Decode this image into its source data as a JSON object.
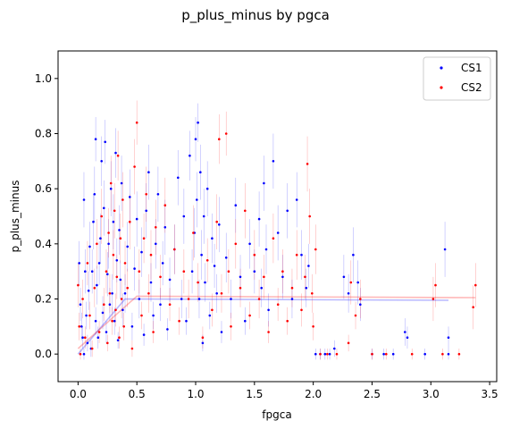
{
  "chart_data": {
    "type": "scatter",
    "title": "p_plus_minus by pgca",
    "xlabel": "fpgca",
    "ylabel": "p_plus_minus",
    "xlim": [
      -0.17,
      3.56
    ],
    "ylim": [
      -0.1,
      1.1
    ],
    "xticks": [
      {
        "value": 0.0,
        "label": "0.0"
      },
      {
        "value": 0.5,
        "label": "0.5"
      },
      {
        "value": 1.0,
        "label": "1.0"
      },
      {
        "value": 1.5,
        "label": "1.5"
      },
      {
        "value": 2.0,
        "label": "2.0"
      },
      {
        "value": 2.5,
        "label": "2.5"
      },
      {
        "value": 3.0,
        "label": "3.0"
      },
      {
        "value": 3.5,
        "label": "3.5"
      }
    ],
    "yticks": [
      {
        "value": 0.0,
        "label": "0.0"
      },
      {
        "value": 0.2,
        "label": "0.2"
      },
      {
        "value": 0.4,
        "label": "0.4"
      },
      {
        "value": 0.6,
        "label": "0.6"
      },
      {
        "value": 0.8,
        "label": "0.8"
      },
      {
        "value": 1.0,
        "label": "1.0"
      }
    ],
    "grid": false,
    "legend_position": "top-right",
    "series": [
      {
        "name": "CS1",
        "color": "#0000ff",
        "fit_line": [
          [
            0.0,
            0.0
          ],
          [
            0.4,
            0.2
          ],
          [
            3.15,
            0.195
          ]
        ],
        "points": [
          [
            0.01,
            0.33,
            0.08
          ],
          [
            0.02,
            0.18,
            0.06
          ],
          [
            0.03,
            0.1,
            0.05
          ],
          [
            0.04,
            0.06,
            0.04
          ],
          [
            0.05,
            0.56,
            0.1
          ],
          [
            0.05,
            0.0,
            0.02
          ],
          [
            0.06,
            0.3,
            0.08
          ],
          [
            0.07,
            0.14,
            0.05
          ],
          [
            0.08,
            0.04,
            0.03
          ],
          [
            0.09,
            0.23,
            0.07
          ],
          [
            0.1,
            0.39,
            0.09
          ],
          [
            0.11,
            0.02,
            0.03
          ],
          [
            0.12,
            0.3,
            0.08
          ],
          [
            0.13,
            0.48,
            0.1
          ],
          [
            0.14,
            0.58,
            0.1
          ],
          [
            0.15,
            0.78,
            0.08
          ],
          [
            0.15,
            0.12,
            0.05
          ],
          [
            0.16,
            0.25,
            0.07
          ],
          [
            0.17,
            0.06,
            0.04
          ],
          [
            0.18,
            0.33,
            0.08
          ],
          [
            0.19,
            0.42,
            0.09
          ],
          [
            0.2,
            0.7,
            0.09
          ],
          [
            0.21,
            0.15,
            0.06
          ],
          [
            0.22,
            0.53,
            0.1
          ],
          [
            0.23,
            0.77,
            0.08
          ],
          [
            0.24,
            0.08,
            0.04
          ],
          [
            0.25,
            0.29,
            0.08
          ],
          [
            0.26,
            0.4,
            0.09
          ],
          [
            0.27,
            0.18,
            0.06
          ],
          [
            0.28,
            0.6,
            0.1
          ],
          [
            0.29,
            0.22,
            0.07
          ],
          [
            0.3,
            0.48,
            0.1
          ],
          [
            0.31,
            0.12,
            0.05
          ],
          [
            0.32,
            0.73,
            0.09
          ],
          [
            0.33,
            0.34,
            0.08
          ],
          [
            0.34,
            0.05,
            0.03
          ],
          [
            0.35,
            0.45,
            0.09
          ],
          [
            0.36,
            0.27,
            0.07
          ],
          [
            0.37,
            0.62,
            0.1
          ],
          [
            0.38,
            0.16,
            0.06
          ],
          [
            0.4,
            0.22,
            0.07
          ],
          [
            0.42,
            0.39,
            0.09
          ],
          [
            0.44,
            0.57,
            0.1
          ],
          [
            0.46,
            0.1,
            0.05
          ],
          [
            0.48,
            0.31,
            0.08
          ],
          [
            0.5,
            0.49,
            0.1
          ],
          [
            0.52,
            0.2,
            0.07
          ],
          [
            0.54,
            0.37,
            0.09
          ],
          [
            0.56,
            0.07,
            0.04
          ],
          [
            0.58,
            0.52,
            0.1
          ],
          [
            0.6,
            0.66,
            0.1
          ],
          [
            0.62,
            0.26,
            0.07
          ],
          [
            0.64,
            0.14,
            0.05
          ],
          [
            0.66,
            0.4,
            0.09
          ],
          [
            0.68,
            0.58,
            0.1
          ],
          [
            0.7,
            0.18,
            0.06
          ],
          [
            0.72,
            0.33,
            0.08
          ],
          [
            0.74,
            0.46,
            0.1
          ],
          [
            0.76,
            0.09,
            0.04
          ],
          [
            0.78,
            0.27,
            0.08
          ],
          [
            0.82,
            0.38,
            0.09
          ],
          [
            0.85,
            0.64,
            0.1
          ],
          [
            0.88,
            0.2,
            0.07
          ],
          [
            0.9,
            0.5,
            0.1
          ],
          [
            0.92,
            0.12,
            0.05
          ],
          [
            0.95,
            0.72,
            0.09
          ],
          [
            0.97,
            0.3,
            0.08
          ],
          [
            0.99,
            0.44,
            0.09
          ],
          [
            1.0,
            0.78,
            0.08
          ],
          [
            1.01,
            0.56,
            0.1
          ],
          [
            1.02,
            0.84,
            0.07
          ],
          [
            1.03,
            0.2,
            0.07
          ],
          [
            1.04,
            0.66,
            0.1
          ],
          [
            1.05,
            0.36,
            0.09
          ],
          [
            1.06,
            0.04,
            0.03
          ],
          [
            1.07,
            0.5,
            0.1
          ],
          [
            1.08,
            0.26,
            0.07
          ],
          [
            1.1,
            0.6,
            0.1
          ],
          [
            1.12,
            0.14,
            0.05
          ],
          [
            1.14,
            0.42,
            0.09
          ],
          [
            1.16,
            0.32,
            0.08
          ],
          [
            1.18,
            0.22,
            0.07
          ],
          [
            1.2,
            0.47,
            0.1
          ],
          [
            1.22,
            0.08,
            0.04
          ],
          [
            1.26,
            0.35,
            0.09
          ],
          [
            1.3,
            0.2,
            0.07
          ],
          [
            1.34,
            0.54,
            0.1
          ],
          [
            1.38,
            0.28,
            0.08
          ],
          [
            1.42,
            0.12,
            0.05
          ],
          [
            1.46,
            0.4,
            0.09
          ],
          [
            1.5,
            0.3,
            0.08
          ],
          [
            1.54,
            0.49,
            0.1
          ],
          [
            1.56,
            0.24,
            0.07
          ],
          [
            1.58,
            0.62,
            0.1
          ],
          [
            1.6,
            0.38,
            0.09
          ],
          [
            1.62,
            0.16,
            0.06
          ],
          [
            1.66,
            0.7,
            0.1
          ],
          [
            1.7,
            0.44,
            0.1
          ],
          [
            1.74,
            0.28,
            0.08
          ],
          [
            1.78,
            0.52,
            0.1
          ],
          [
            1.82,
            0.2,
            0.07
          ],
          [
            1.86,
            0.56,
            0.1
          ],
          [
            1.9,
            0.36,
            0.09
          ],
          [
            1.94,
            0.24,
            0.07
          ],
          [
            1.96,
            0.32,
            0.08
          ],
          [
            2.02,
            0.0,
            0.02
          ],
          [
            2.06,
            0.0,
            0.02
          ],
          [
            2.1,
            0.0,
            0.02
          ],
          [
            2.14,
            0.0,
            0.02
          ],
          [
            2.18,
            0.02,
            0.03
          ],
          [
            2.26,
            0.28,
            0.08
          ],
          [
            2.3,
            0.22,
            0.07
          ],
          [
            2.34,
            0.36,
            0.1
          ],
          [
            2.38,
            0.26,
            0.08
          ],
          [
            2.4,
            0.18,
            0.06
          ],
          [
            2.5,
            0.0,
            0.02
          ],
          [
            2.6,
            0.0,
            0.02
          ],
          [
            2.68,
            0.0,
            0.02
          ],
          [
            2.78,
            0.08,
            0.05
          ],
          [
            2.8,
            0.06,
            0.04
          ],
          [
            2.95,
            0.0,
            0.02
          ],
          [
            3.12,
            0.38,
            0.1
          ],
          [
            3.15,
            0.06,
            0.04
          ],
          [
            3.15,
            0.0,
            0.02
          ]
        ]
      },
      {
        "name": "CS2",
        "color": "#ff0000",
        "fit_line": [
          [
            0.0,
            0.02
          ],
          [
            0.5,
            0.21
          ],
          [
            3.38,
            0.205
          ]
        ],
        "points": [
          [
            0.0,
            0.25,
            0.08
          ],
          [
            0.01,
            0.1,
            0.05
          ],
          [
            0.02,
            0.0,
            0.02
          ],
          [
            0.04,
            0.2,
            0.07
          ],
          [
            0.06,
            0.06,
            0.04
          ],
          [
            0.08,
            0.33,
            0.08
          ],
          [
            0.1,
            0.14,
            0.05
          ],
          [
            0.12,
            0.02,
            0.03
          ],
          [
            0.14,
            0.24,
            0.07
          ],
          [
            0.16,
            0.4,
            0.09
          ],
          [
            0.18,
            0.08,
            0.04
          ],
          [
            0.2,
            0.5,
            0.1
          ],
          [
            0.22,
            0.18,
            0.06
          ],
          [
            0.24,
            0.3,
            0.08
          ],
          [
            0.25,
            0.04,
            0.03
          ],
          [
            0.26,
            0.44,
            0.09
          ],
          [
            0.27,
            0.22,
            0.07
          ],
          [
            0.28,
            0.62,
            0.1
          ],
          [
            0.29,
            0.12,
            0.05
          ],
          [
            0.3,
            0.36,
            0.09
          ],
          [
            0.31,
            0.52,
            0.1
          ],
          [
            0.32,
            0.16,
            0.06
          ],
          [
            0.33,
            0.28,
            0.08
          ],
          [
            0.34,
            0.72,
            0.09
          ],
          [
            0.35,
            0.06,
            0.04
          ],
          [
            0.36,
            0.42,
            0.09
          ],
          [
            0.37,
            0.2,
            0.07
          ],
          [
            0.38,
            0.56,
            0.1
          ],
          [
            0.39,
            0.1,
            0.05
          ],
          [
            0.4,
            0.33,
            0.08
          ],
          [
            0.42,
            0.24,
            0.07
          ],
          [
            0.44,
            0.48,
            0.1
          ],
          [
            0.46,
            0.02,
            0.03
          ],
          [
            0.48,
            0.68,
            0.1
          ],
          [
            0.5,
            0.84,
            0.08
          ],
          [
            0.52,
            0.3,
            0.08
          ],
          [
            0.54,
            0.14,
            0.05
          ],
          [
            0.56,
            0.42,
            0.09
          ],
          [
            0.58,
            0.58,
            0.1
          ],
          [
            0.6,
            0.22,
            0.07
          ],
          [
            0.62,
            0.36,
            0.09
          ],
          [
            0.64,
            0.08,
            0.04
          ],
          [
            0.66,
            0.46,
            0.1
          ],
          [
            0.7,
            0.28,
            0.08
          ],
          [
            0.74,
            0.54,
            0.1
          ],
          [
            0.78,
            0.18,
            0.06
          ],
          [
            0.82,
            0.38,
            0.09
          ],
          [
            0.86,
            0.12,
            0.05
          ],
          [
            0.9,
            0.3,
            0.08
          ],
          [
            0.94,
            0.2,
            0.07
          ],
          [
            0.98,
            0.44,
            0.1
          ],
          [
            1.02,
            0.26,
            0.07
          ],
          [
            1.06,
            0.06,
            0.04
          ],
          [
            1.1,
            0.34,
            0.08
          ],
          [
            1.14,
            0.16,
            0.06
          ],
          [
            1.18,
            0.48,
            0.1
          ],
          [
            1.2,
            0.78,
            0.09
          ],
          [
            1.22,
            0.22,
            0.07
          ],
          [
            1.26,
            0.8,
            0.08
          ],
          [
            1.28,
            0.3,
            0.08
          ],
          [
            1.3,
            0.1,
            0.05
          ],
          [
            1.34,
            0.4,
            0.09
          ],
          [
            1.38,
            0.24,
            0.07
          ],
          [
            1.42,
            0.52,
            0.1
          ],
          [
            1.46,
            0.14,
            0.05
          ],
          [
            1.5,
            0.36,
            0.09
          ],
          [
            1.54,
            0.2,
            0.07
          ],
          [
            1.58,
            0.28,
            0.08
          ],
          [
            1.62,
            0.08,
            0.04
          ],
          [
            1.66,
            0.42,
            0.09
          ],
          [
            1.7,
            0.18,
            0.06
          ],
          [
            1.74,
            0.3,
            0.08
          ],
          [
            1.78,
            0.12,
            0.05
          ],
          [
            1.82,
            0.24,
            0.07
          ],
          [
            1.86,
            0.36,
            0.09
          ],
          [
            1.9,
            0.16,
            0.06
          ],
          [
            1.93,
            0.28,
            0.08
          ],
          [
            1.95,
            0.69,
            0.1
          ],
          [
            1.97,
            0.5,
            0.1
          ],
          [
            1.99,
            0.22,
            0.07
          ],
          [
            2.0,
            0.1,
            0.05
          ],
          [
            2.02,
            0.38,
            0.09
          ],
          [
            2.06,
            0.0,
            0.02
          ],
          [
            2.12,
            0.0,
            0.02
          ],
          [
            2.2,
            0.0,
            0.02
          ],
          [
            2.3,
            0.04,
            0.03
          ],
          [
            2.32,
            0.26,
            0.08
          ],
          [
            2.36,
            0.14,
            0.05
          ],
          [
            2.4,
            0.2,
            0.07
          ],
          [
            2.5,
            0.0,
            0.02
          ],
          [
            2.62,
            0.0,
            0.02
          ],
          [
            2.84,
            0.0,
            0.02
          ],
          [
            3.02,
            0.2,
            0.08
          ],
          [
            3.04,
            0.25,
            0.08
          ],
          [
            3.1,
            0.0,
            0.02
          ],
          [
            3.24,
            0.0,
            0.02
          ],
          [
            3.36,
            0.17,
            0.08
          ],
          [
            3.38,
            0.25,
            0.08
          ]
        ]
      }
    ]
  }
}
